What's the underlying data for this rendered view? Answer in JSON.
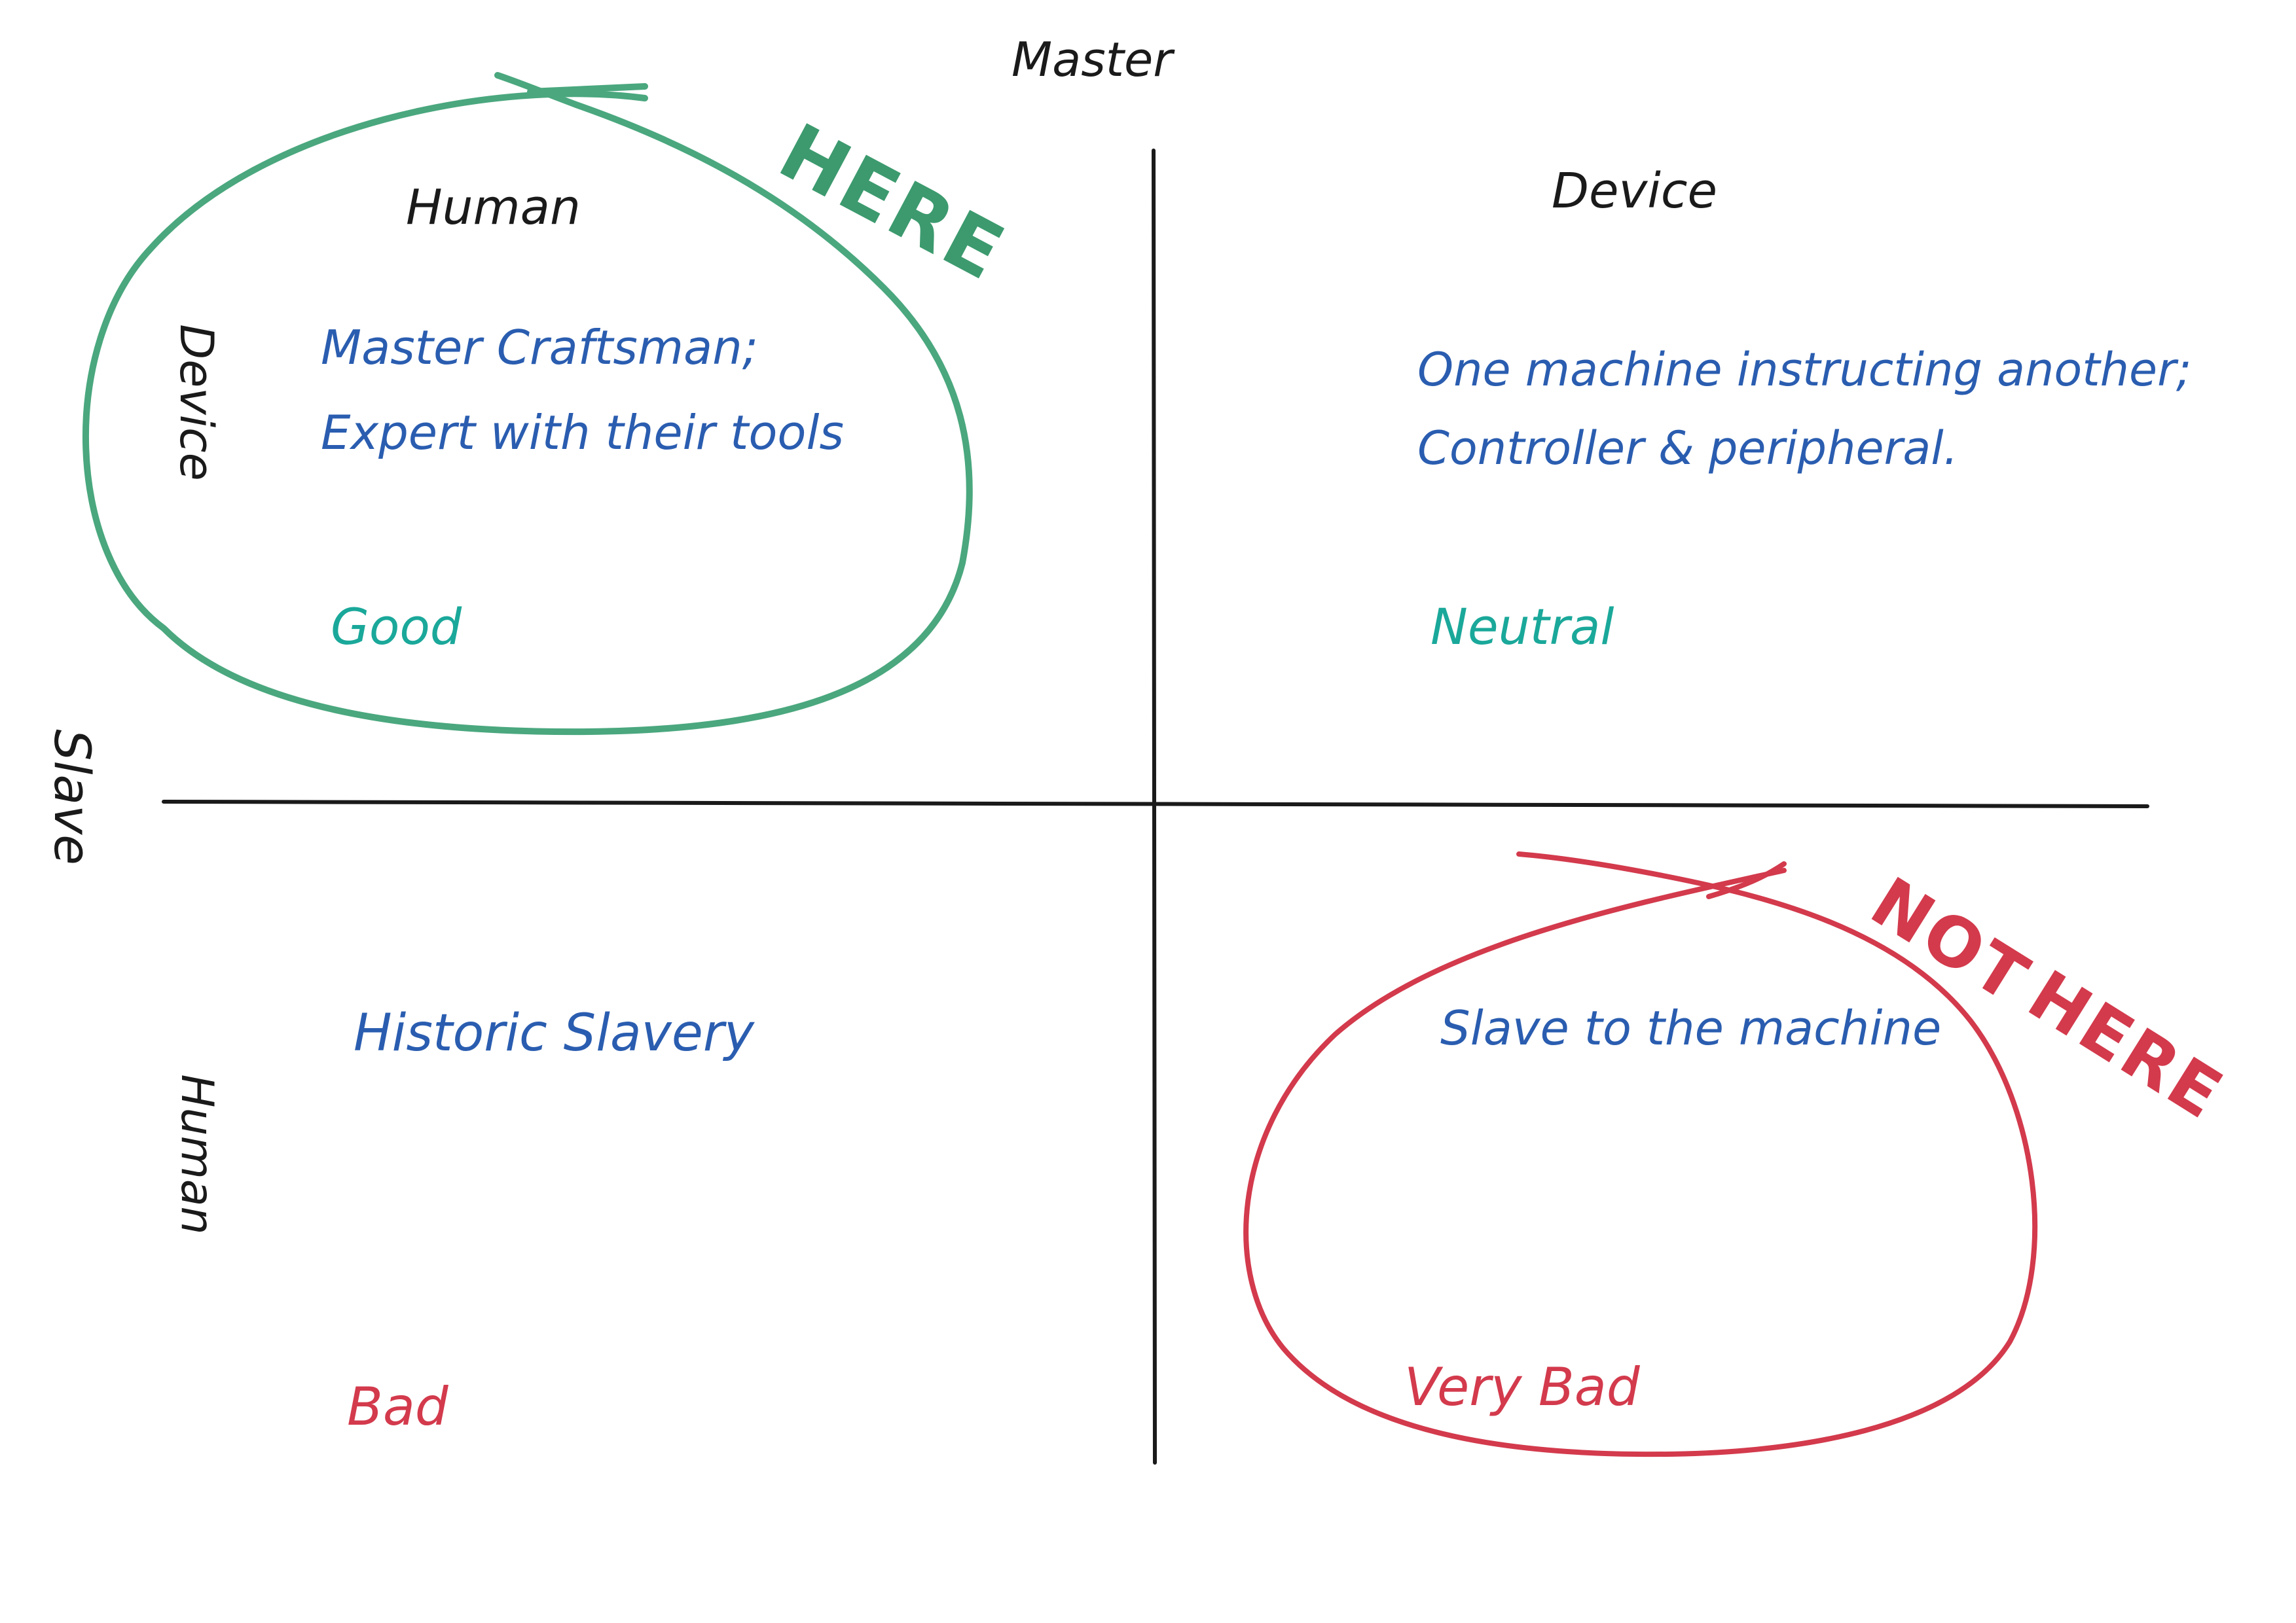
{
  "axes": {
    "master_label": "Master",
    "slave_label": "Slave",
    "top_left_column": "Human",
    "top_right_column": "Device",
    "upper_row": "Device",
    "lower_row": "Human"
  },
  "quadrants": {
    "top_left": {
      "line1": "Master Craftsman;",
      "line2": "Expert with their tools",
      "verdict": "Good"
    },
    "top_right": {
      "line1": "One machine instructing another;",
      "line2": "Controller & peripheral.",
      "verdict": "Neutral"
    },
    "bottom_left": {
      "line1": "Historic Slavery",
      "verdict": "Bad"
    },
    "bottom_right": {
      "line1": "Slave to the machine",
      "verdict": "Very Bad"
    }
  },
  "callouts": {
    "here": "HERE",
    "not_here_1": "NOT",
    "not_here_2": "HERE"
  },
  "colors": {
    "ink": "#1a1a1a",
    "blue": "#2a5db0",
    "teal": "#1aa89a",
    "green": "#4aa77e",
    "green_dark": "#3c9a6e",
    "red": "#d33a4c"
  }
}
